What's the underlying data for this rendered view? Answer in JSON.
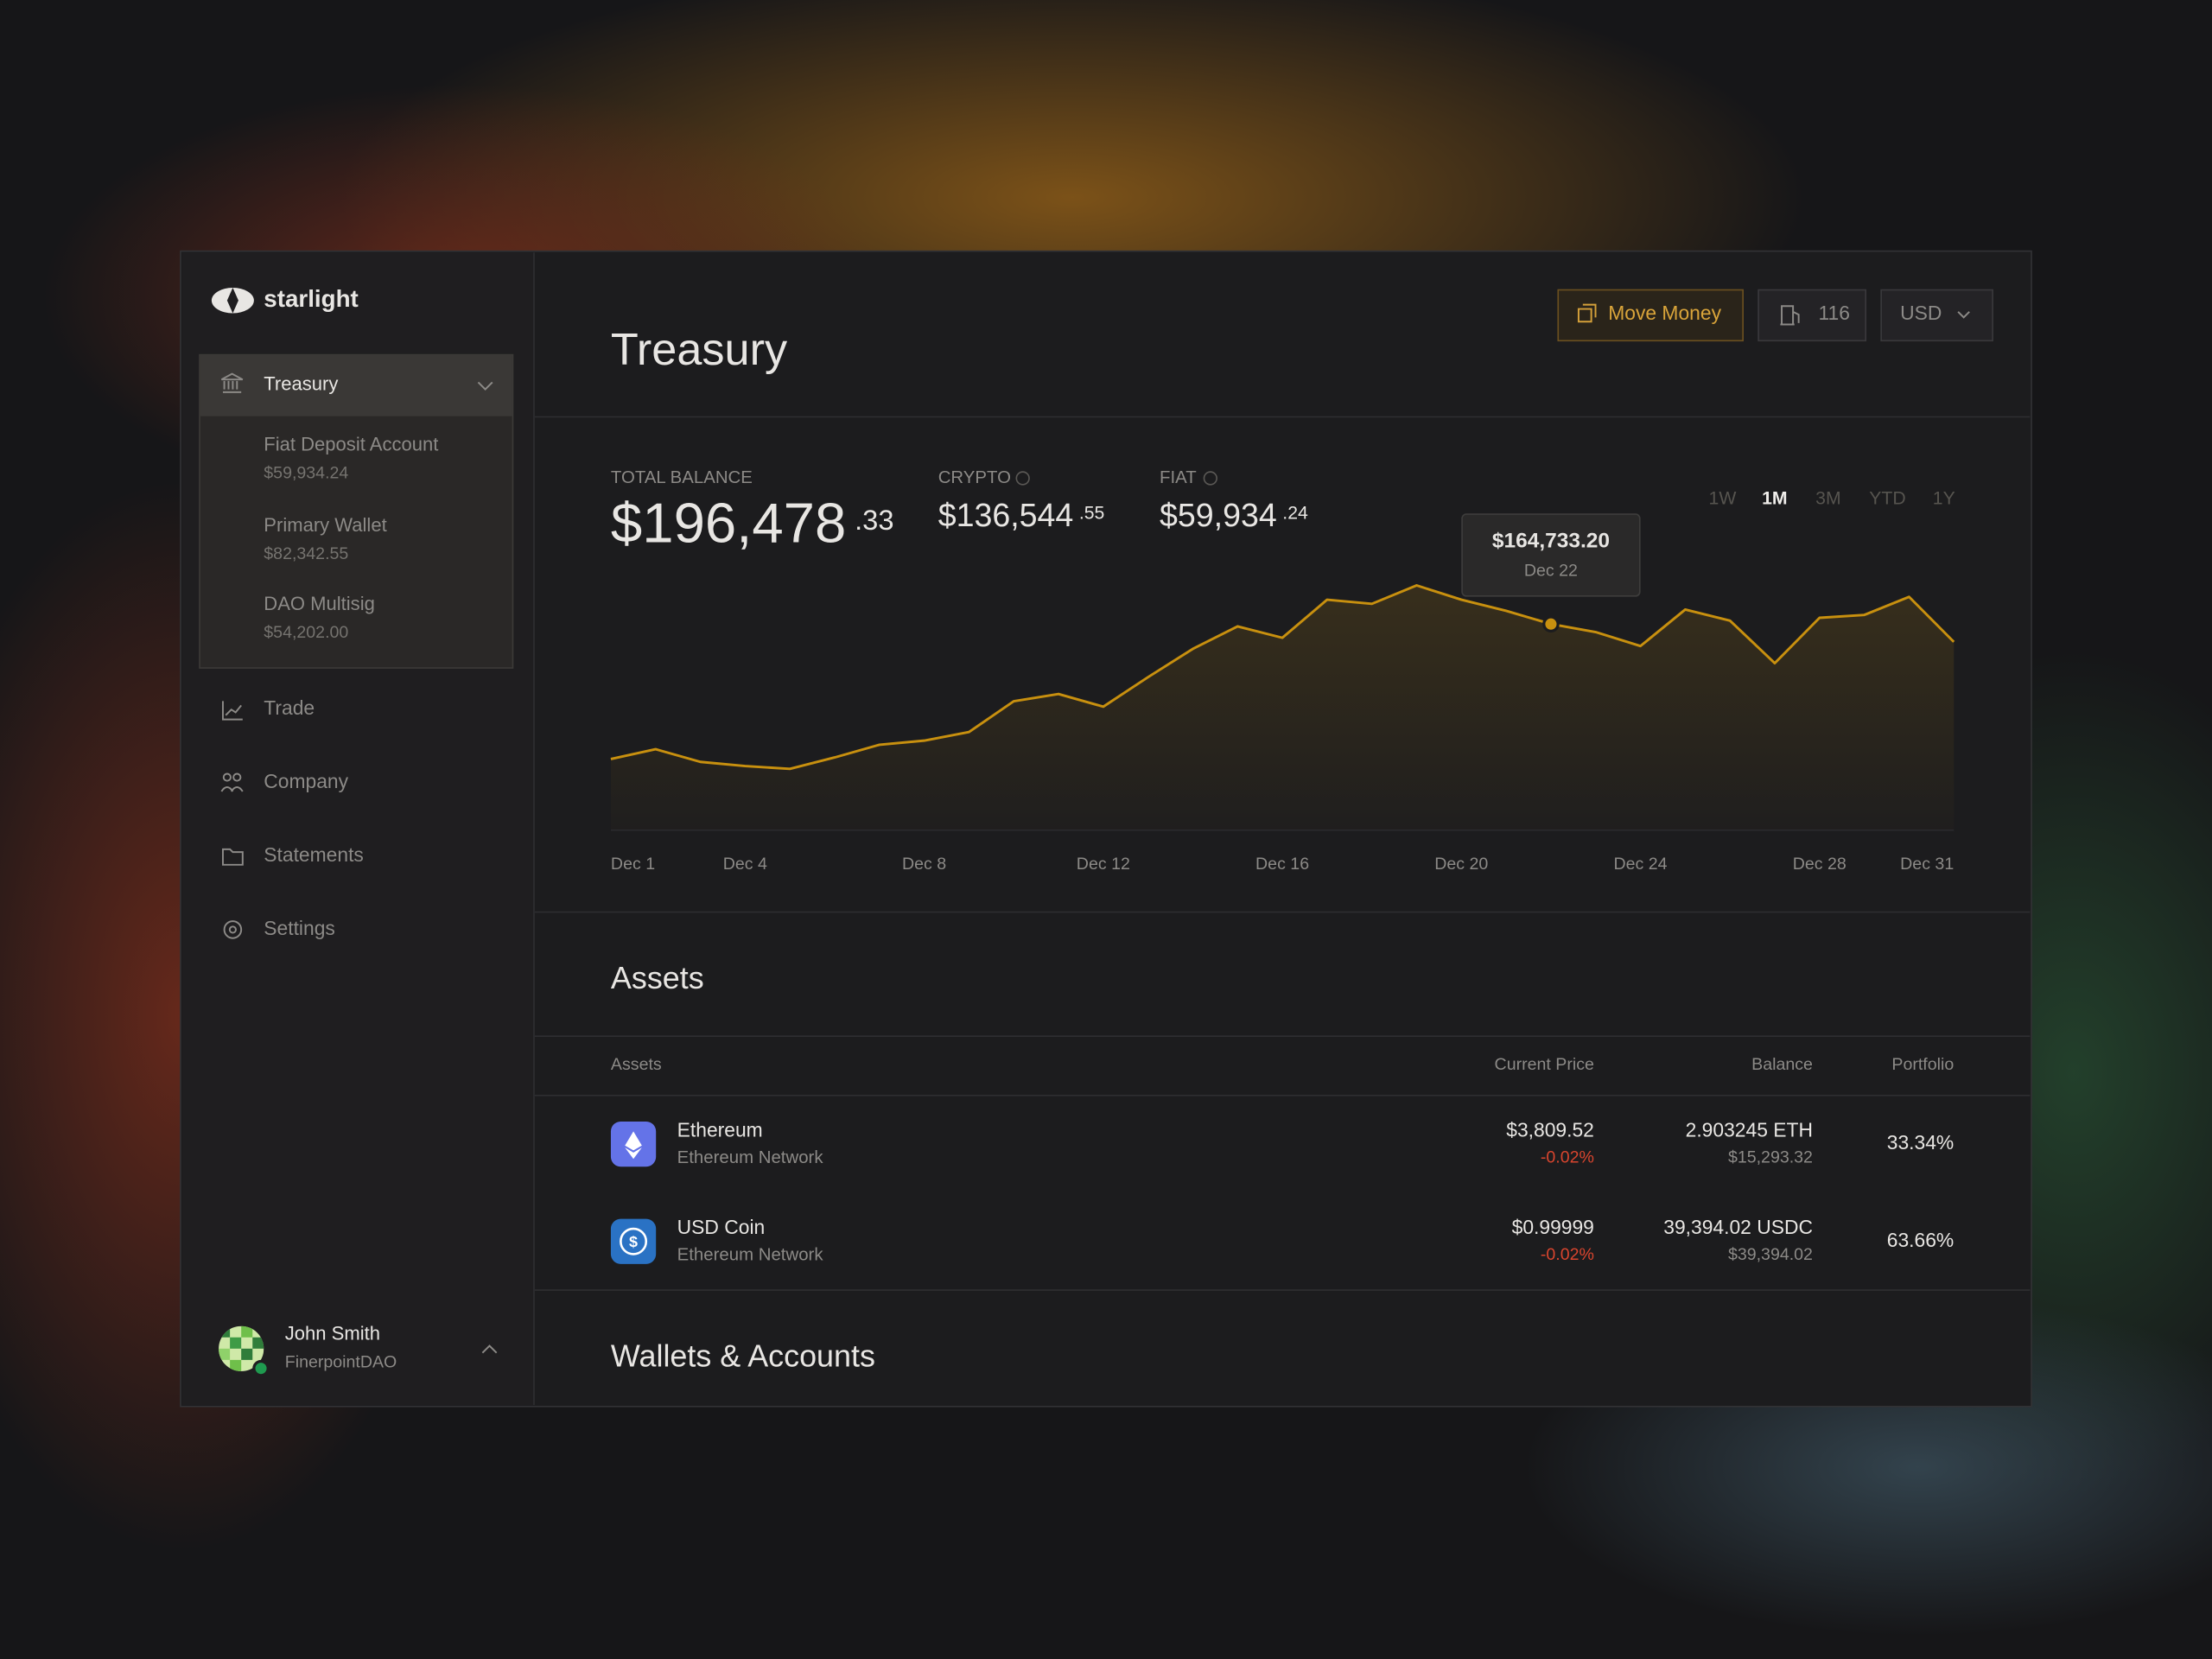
{
  "sidebar": {
    "brand": "starlight",
    "treasury": {
      "label": "Treasury",
      "accounts": [
        {
          "name": "Fiat Deposit Account",
          "balance": "$59,934.24"
        },
        {
          "name": "Primary Wallet",
          "balance": "$82,342.55"
        },
        {
          "name": "DAO Multisig",
          "balance": "$54,202.00"
        }
      ]
    },
    "nav": [
      "Trade",
      "Company",
      "Statements",
      "Settings"
    ],
    "user": {
      "name": "John Smith",
      "org": "FinerpointDAO"
    }
  },
  "header": {
    "title": "Treasury",
    "move_money": "Move Money",
    "gas": "116",
    "currency": "USD"
  },
  "summary": [
    {
      "label": "TOTAL BALANCE",
      "whole": "$196,478",
      "cents": ".33"
    },
    {
      "label": "CRYPTO",
      "whole": "$136,544",
      "cents": ".55"
    },
    {
      "label": "FIAT",
      "whole": "$59,934",
      "cents": ".24"
    }
  ],
  "chart_data": {
    "type": "line",
    "categories": [
      "Dec 1",
      null,
      null,
      "Dec 4",
      null,
      null,
      null,
      "Dec 8",
      null,
      null,
      null,
      "Dec 12",
      null,
      null,
      null,
      "Dec 16",
      null,
      null,
      null,
      "Dec 20",
      null,
      null,
      null,
      "Dec 24",
      null,
      null,
      null,
      "Dec 28",
      null,
      null,
      "Dec 31"
    ],
    "series": [
      {
        "color": "#c8900f",
        "values": [
          122200,
          125300,
          121300,
          120000,
          119100,
          122700,
          126700,
          128000,
          130700,
          140400,
          142700,
          138700,
          148000,
          156900,
          164000,
          160400,
          172400,
          171100,
          176900,
          172400,
          168900,
          164733.2,
          162200,
          157800,
          169300,
          165800,
          152400,
          166700,
          167600,
          173300,
          159100
        ],
        "value_labels": [
          null,
          null,
          null,
          null,
          null,
          null,
          null,
          null,
          null,
          null,
          null,
          null,
          null,
          null,
          null,
          null,
          null,
          null,
          null,
          null,
          null,
          "$164,733.20",
          null,
          null,
          null,
          null,
          null,
          null,
          null,
          null,
          null
        ]
      }
    ],
    "tooltip_date": "Dec 22",
    "ylim": [
      100000,
      180000
    ],
    "ranges": [
      "1W",
      "1M",
      "3M",
      "YTD",
      "1Y"
    ],
    "active_range": "1M"
  },
  "assets": {
    "title": "Assets",
    "columns": [
      "Assets",
      "Current Price",
      "Balance",
      "Portfolio"
    ],
    "rows": [
      {
        "name": "Ethereum",
        "network": "Ethereum Network",
        "price": "$3,809.52",
        "change": "-0.02%",
        "balance": "2.903245 ETH",
        "balance_usd": "$15,293.32",
        "portfolio": "33.34%"
      },
      {
        "name": "USD Coin",
        "network": "Ethereum Network",
        "price": "$0.99999",
        "change": "-0.02%",
        "balance": "39,394.02 USDC",
        "balance_usd": "$39,394.02",
        "portfolio": "63.66%"
      }
    ]
  },
  "wallets": {
    "title": "Wallets & Accounts"
  }
}
